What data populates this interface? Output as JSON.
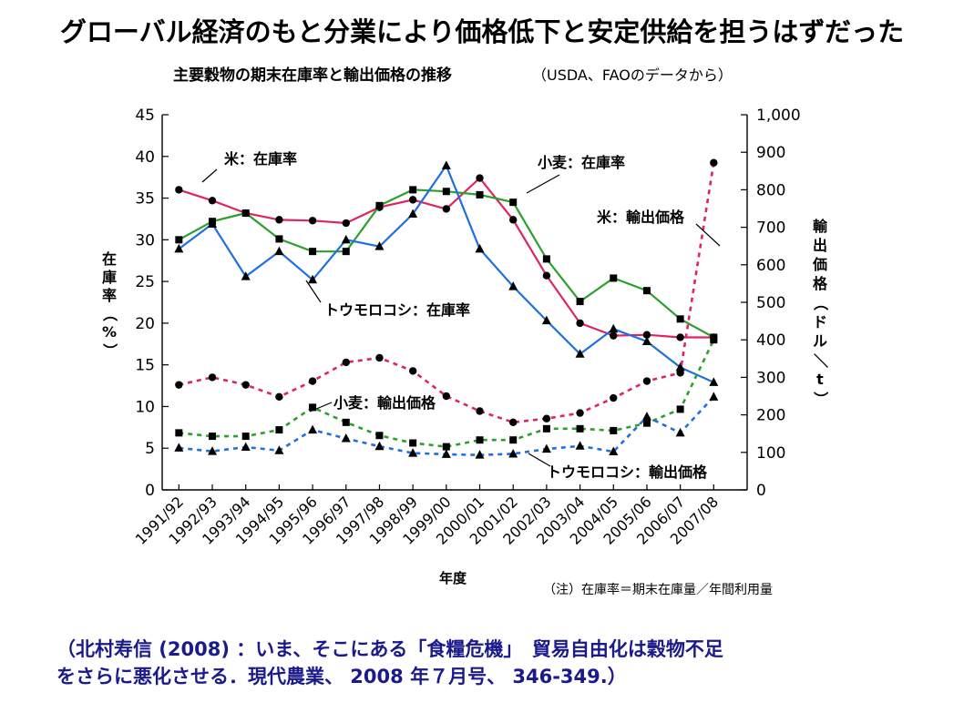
{
  "headline": "グローバル経済のもと分業により価格低下と安定供給を担うはずだった",
  "citation": {
    "line1": "（北村寿信 (2008) ：いま、そこにある「食糧危機」　貿易自由化は穀物不足",
    "line2": "をさらに悪化させる．現代農業、 2008 年７月号、 346-349.）"
  },
  "chart_data": {
    "type": "line",
    "title": "主要穀物の期末在庫率と輸出価格の推移",
    "subtitle": "（USDA、FAOのデータから）",
    "xlabel": "年度",
    "ylabel": "在庫率（%）",
    "ylabel_right": "輸出価格（ドル／t）",
    "note": "（注）在庫率＝期末在庫量／年間利用量",
    "categories": [
      "1991/92",
      "1992/93",
      "1993/94",
      "1994/95",
      "1995/96",
      "1996/97",
      "1997/98",
      "1998/99",
      "1999/00",
      "2000/01",
      "2001/02",
      "2002/03",
      "2003/04",
      "2004/05",
      "2005/06",
      "2006/07",
      "2007/08"
    ],
    "ylim": [
      0,
      45
    ],
    "yticks": [
      "0",
      "5",
      "10",
      "15",
      "20",
      "25",
      "30",
      "35",
      "40",
      "45"
    ],
    "ylim_right": [
      0,
      1000
    ],
    "yticks_right": [
      "0",
      "100",
      "200",
      "300",
      "400",
      "500",
      "600",
      "700",
      "800",
      "900",
      "1,000"
    ],
    "series": [
      {
        "name": "米：在庫率",
        "axis": "left",
        "style": "solid",
        "color": "#e0245e",
        "marker": "circle",
        "values": [
          36,
          34.7,
          33.2,
          32.4,
          32.3,
          32.0,
          33.9,
          34.8,
          33.7,
          37.4,
          32.4,
          25.7,
          20.0,
          18.5,
          18.6,
          18.3,
          18.3
        ]
      },
      {
        "name": "小麦：在庫率",
        "axis": "left",
        "style": "solid",
        "color": "#2ca02c",
        "marker": "square",
        "values": [
          30,
          32.2,
          33.2,
          30.1,
          28.6,
          28.6,
          34.1,
          36.0,
          35.8,
          35.4,
          34.5,
          27.7,
          22.6,
          25.4,
          23.9,
          20.5,
          18.3
        ]
      },
      {
        "name": "トウモロコシ：在庫率",
        "axis": "left",
        "style": "solid",
        "color": "#1f6fe0",
        "marker": "triangle",
        "values": [
          28.9,
          31.9,
          25.6,
          28.6,
          25.2,
          30.0,
          29.2,
          33.1,
          38.9,
          28.9,
          24.4,
          20.3,
          16.3,
          19.3,
          17.8,
          14.7,
          12.9
        ]
      },
      {
        "name": "米：輸出価格",
        "axis": "right",
        "style": "dashed",
        "color": "#e0245e",
        "marker": "circle",
        "values": [
          280,
          300,
          280,
          248,
          290,
          340,
          352,
          317,
          250,
          210,
          180,
          190,
          205,
          245,
          290,
          312,
          872
        ]
      },
      {
        "name": "小麦：輸出価格",
        "axis": "right",
        "style": "dashed",
        "color": "#2ca02c",
        "marker": "square",
        "values": [
          152,
          143,
          143,
          160,
          220,
          180,
          145,
          125,
          115,
          133,
          133,
          163,
          163,
          158,
          178,
          215,
          400
        ]
      },
      {
        "name": "トウモロコシ：輸出価格",
        "axis": "right",
        "style": "dashed",
        "color": "#1f6fe0",
        "marker": "triangle",
        "values": [
          112,
          103,
          114,
          105,
          160,
          137,
          116,
          98,
          95,
          93,
          96,
          109,
          117,
          102,
          195,
          152,
          248
        ]
      }
    ],
    "annotations": [
      "米：在庫率",
      "小麦：在庫率",
      "米：輸出価格",
      "トウモロコシ：在庫率",
      "小麦：輸出価格",
      "トウモロコシ：輸出価格"
    ]
  }
}
